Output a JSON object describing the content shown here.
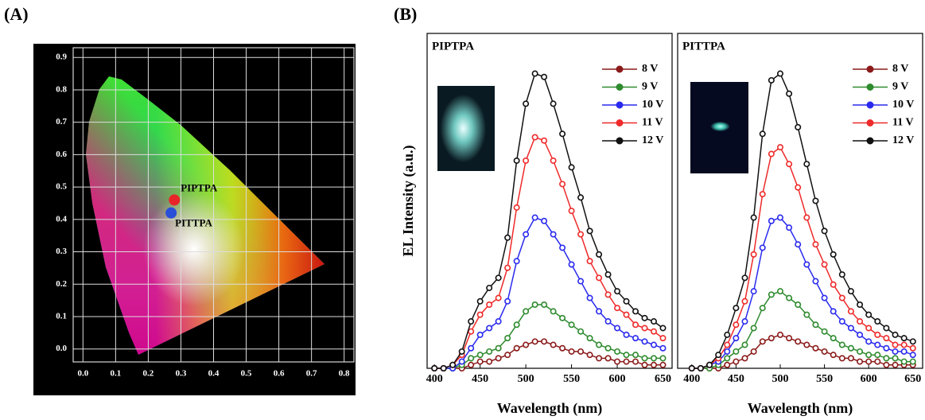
{
  "chart_data": [
    {
      "type": "scatter",
      "panel": "(A)",
      "xlim": [
        -0.03,
        0.83
      ],
      "ylim": [
        -0.04,
        0.93
      ],
      "xticks": [
        {
          "value": 0,
          "label": "0.0"
        },
        0.1,
        0.2,
        0.3,
        0.4,
        0.5,
        0.6,
        0.7,
        0.8
      ],
      "yticks": [
        {
          "value": 0,
          "label": "0.0"
        },
        0.1,
        0.2,
        0.3,
        0.4,
        0.5,
        0.6,
        0.7,
        0.8,
        0.9
      ],
      "grid": true,
      "series": [
        {
          "name": "PIPTPA",
          "color": "#e8262a",
          "x": [
            0.28
          ],
          "values": [
            0.46
          ]
        },
        {
          "name": "PITTPA",
          "color": "#2a4fd8",
          "x": [
            0.27
          ],
          "values": [
            0.42
          ]
        }
      ]
    },
    {
      "type": "line",
      "panel": "(B)",
      "title": "PIPTPA",
      "xlabel": "Wavelength (nm)",
      "ylabel": "EL Intensity (a.u.)",
      "xlim": [
        392,
        660
      ],
      "xticks": [
        400,
        450,
        500,
        550,
        600,
        650
      ],
      "ylim": [
        0,
        100
      ],
      "x": [
        400,
        410,
        420,
        430,
        440,
        450,
        460,
        470,
        480,
        490,
        500,
        510,
        520,
        530,
        540,
        550,
        560,
        570,
        580,
        590,
        600,
        610,
        620,
        630,
        640,
        650
      ],
      "series": [
        {
          "name": "8 V",
          "color": "#8b1a1a",
          "values": [
            0,
            0,
            0,
            0,
            1,
            2,
            2,
            3,
            4,
            6,
            7,
            8,
            8,
            7,
            6,
            5,
            5,
            4,
            3,
            3,
            2,
            2,
            2,
            1,
            1,
            1
          ]
        },
        {
          "name": "9 V",
          "color": "#2e8b2e",
          "values": [
            0,
            0,
            0,
            1,
            3,
            4,
            5,
            6,
            9,
            13,
            17,
            19,
            19,
            17,
            15,
            13,
            11,
            9,
            7,
            6,
            5,
            4,
            4,
            3,
            3,
            3
          ]
        },
        {
          "name": "10 V",
          "color": "#2a2aee",
          "values": [
            0,
            0,
            0,
            2,
            6,
            10,
            12,
            14,
            20,
            32,
            40,
            45,
            44,
            40,
            36,
            31,
            26,
            21,
            17,
            14,
            12,
            10,
            9,
            8,
            7,
            6
          ]
        },
        {
          "name": "11 V",
          "color": "#ee2a2a",
          "values": [
            0,
            0,
            1,
            4,
            11,
            16,
            19,
            21,
            30,
            48,
            62,
            69,
            68,
            62,
            55,
            47,
            40,
            32,
            27,
            22,
            18,
            16,
            13,
            12,
            11,
            9
          ]
        },
        {
          "name": "12 V",
          "color": "#111111",
          "values": [
            0,
            0,
            1,
            5,
            14,
            20,
            24,
            27,
            39,
            62,
            79,
            88,
            87,
            79,
            70,
            60,
            51,
            41,
            34,
            28,
            23,
            20,
            17,
            15,
            14,
            12
          ]
        }
      ]
    },
    {
      "type": "line",
      "title": "PITTPA",
      "xlabel": "Wavelength (nm)",
      "xlim": [
        384,
        661
      ],
      "xticks": [
        400,
        450,
        500,
        550,
        600,
        650
      ],
      "ylim": [
        0,
        100
      ],
      "x": [
        400,
        410,
        420,
        430,
        440,
        450,
        460,
        470,
        480,
        490,
        500,
        510,
        520,
        530,
        540,
        550,
        560,
        570,
        580,
        590,
        600,
        610,
        620,
        630,
        640,
        650
      ],
      "series": [
        {
          "name": "8 V",
          "color": "#8b1a1a",
          "values": [
            0,
            0,
            0,
            0,
            1,
            2,
            3,
            5,
            8,
            9,
            10,
            9,
            8,
            7,
            6,
            5,
            4,
            3,
            3,
            2,
            2,
            2,
            1,
            1,
            1,
            1
          ]
        },
        {
          "name": "9 V",
          "color": "#2e8b2e",
          "values": [
            0,
            0,
            0,
            1,
            3,
            5,
            7,
            12,
            18,
            22,
            23,
            21,
            19,
            16,
            13,
            11,
            9,
            7,
            6,
            5,
            4,
            4,
            3,
            3,
            2,
            2
          ]
        },
        {
          "name": "10 V",
          "color": "#2a2aee",
          "values": [
            0,
            0,
            1,
            2,
            5,
            9,
            14,
            23,
            36,
            44,
            45,
            42,
            37,
            31,
            26,
            21,
            17,
            14,
            12,
            10,
            8,
            7,
            6,
            5,
            5,
            4
          ]
        },
        {
          "name": "11 V",
          "color": "#ee2a2a",
          "values": [
            0,
            0,
            1,
            3,
            7,
            13,
            20,
            34,
            52,
            64,
            66,
            61,
            54,
            45,
            37,
            31,
            25,
            21,
            17,
            14,
            12,
            10,
            9,
            7,
            7,
            6
          ]
        },
        {
          "name": "12 V",
          "color": "#111111",
          "values": [
            0,
            0,
            1,
            4,
            10,
            18,
            27,
            45,
            70,
            86,
            88,
            82,
            72,
            61,
            50,
            41,
            34,
            28,
            23,
            19,
            16,
            14,
            12,
            10,
            9,
            8
          ]
        }
      ]
    }
  ]
}
